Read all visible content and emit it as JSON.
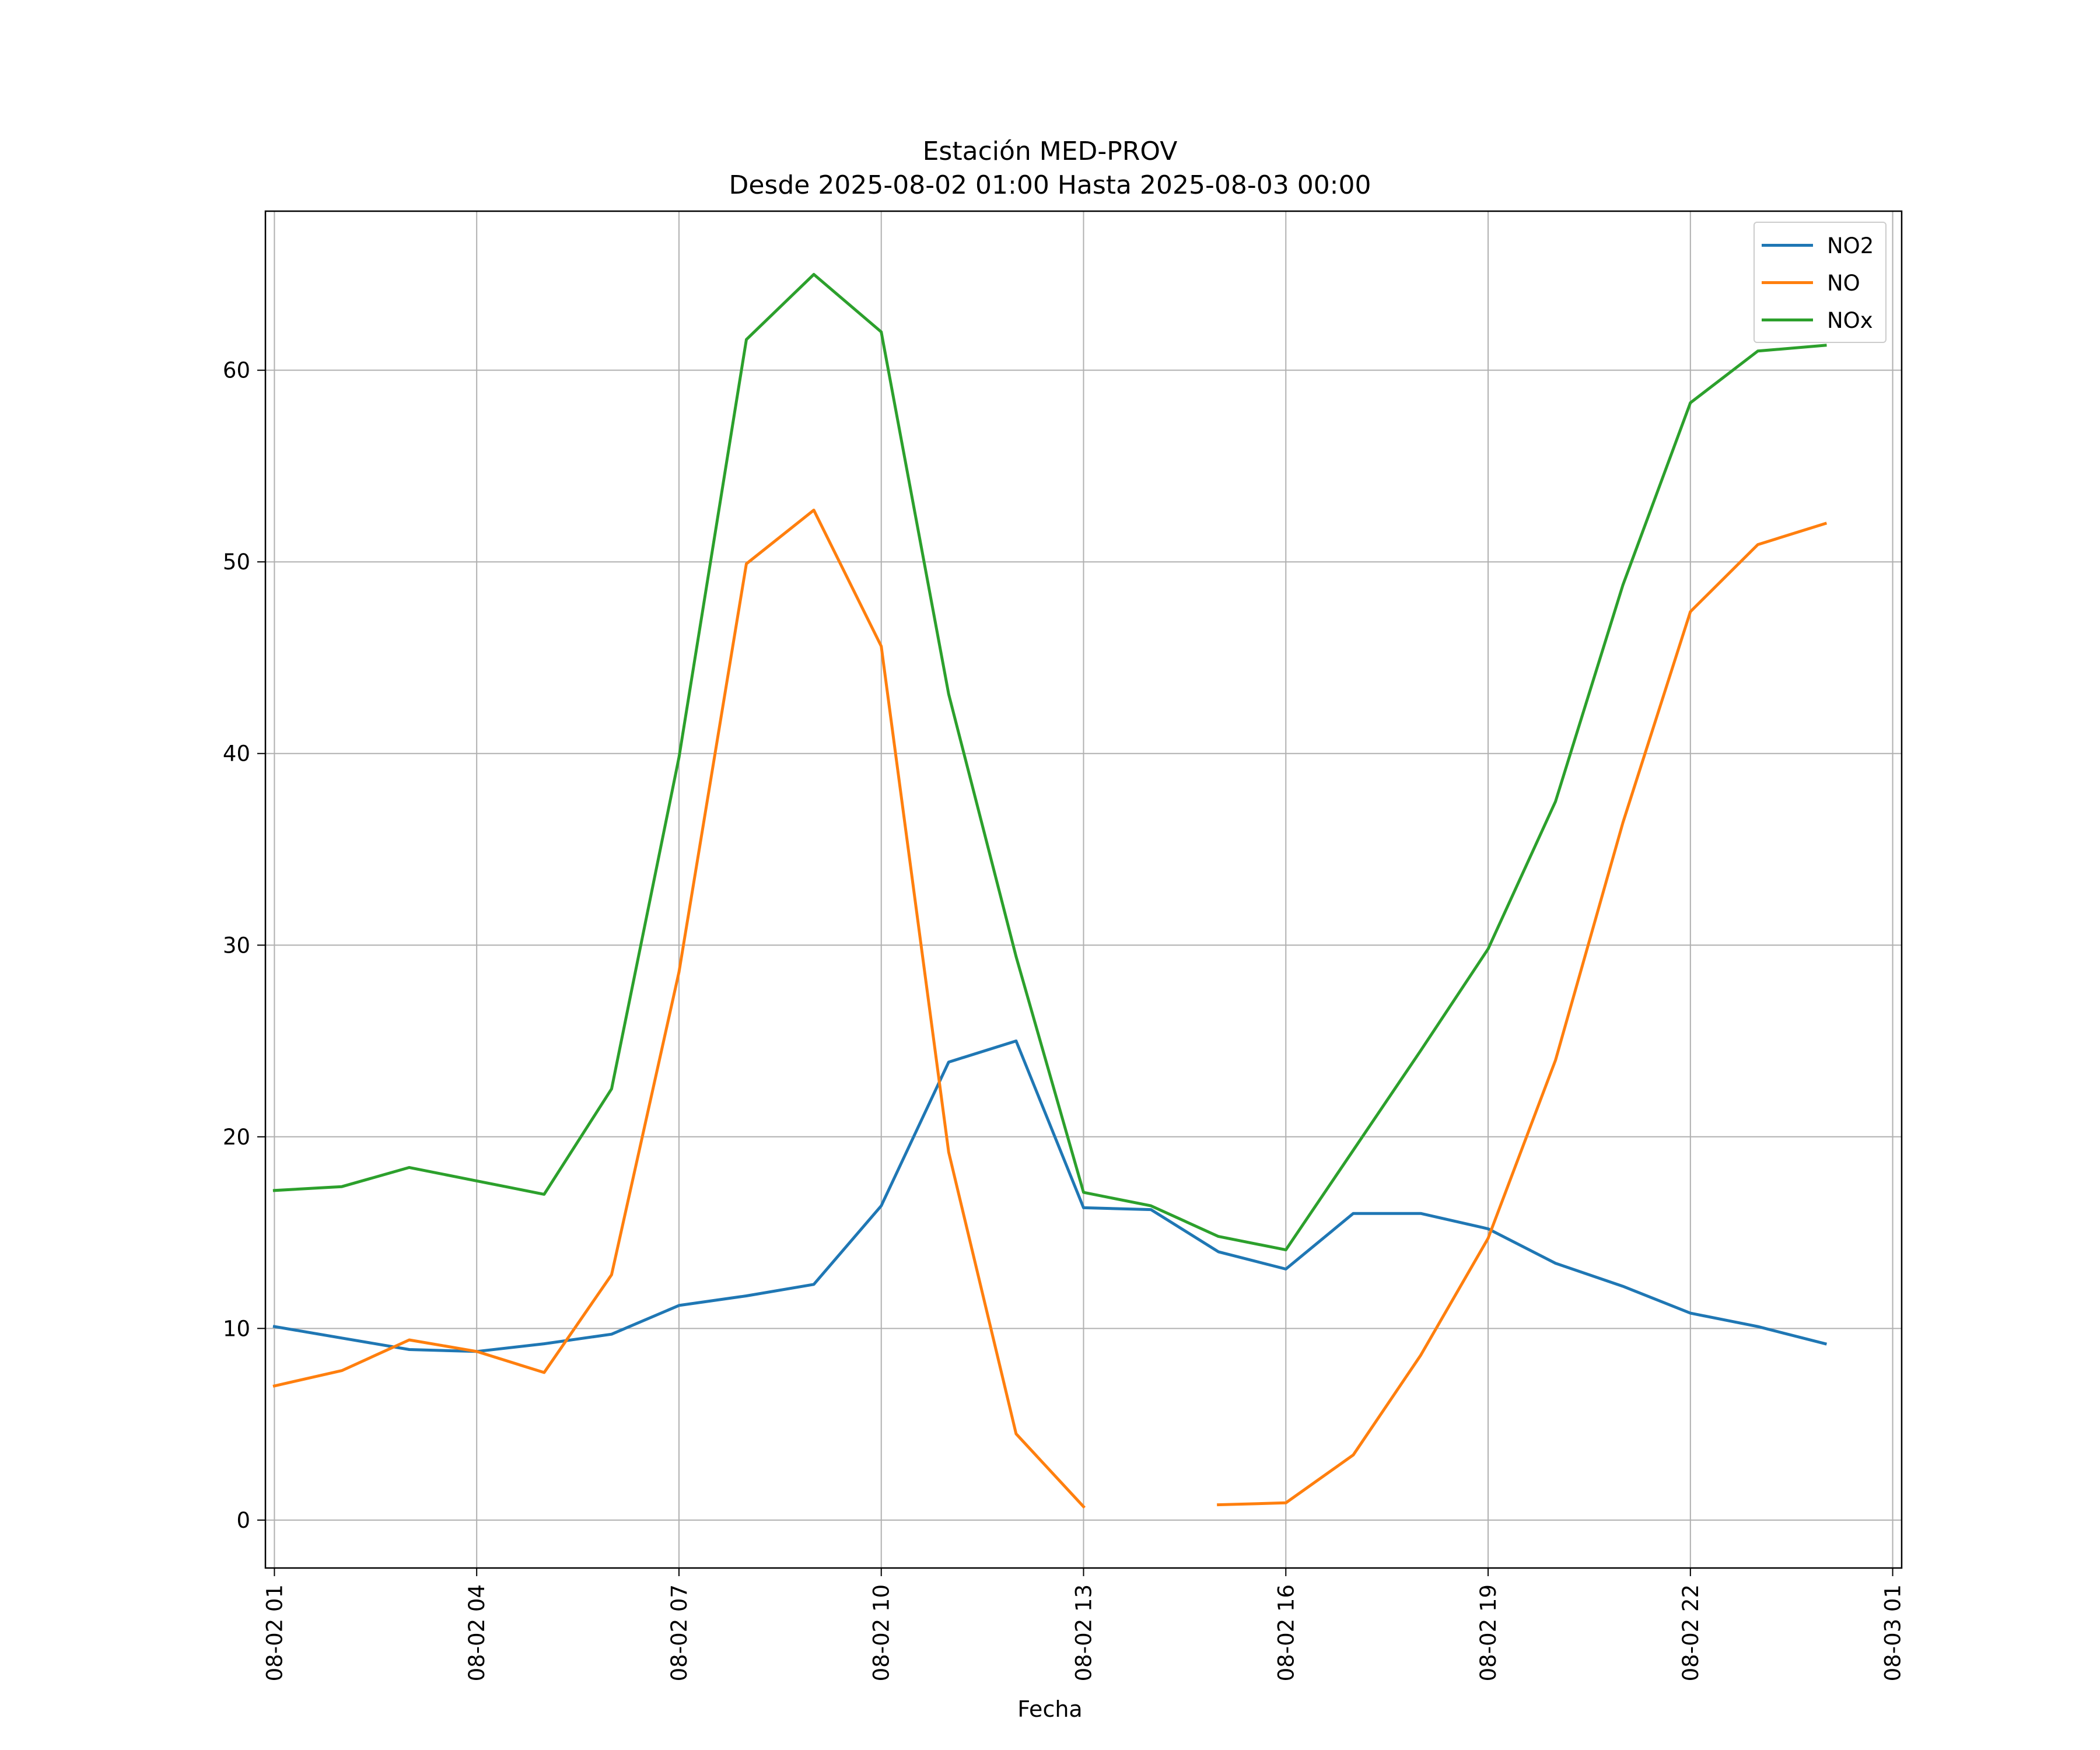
{
  "chart_data": {
    "type": "line",
    "title": "Estación MED-PROV",
    "subtitle": "Desde 2025-08-02 01:00 Hasta 2025-08-03 00:00",
    "xlabel": "Fecha",
    "ylabel": "",
    "x": [
      "2025-08-02 01:00",
      "2025-08-02 02:00",
      "2025-08-02 03:00",
      "2025-08-02 04:00",
      "2025-08-02 05:00",
      "2025-08-02 06:00",
      "2025-08-02 07:00",
      "2025-08-02 08:00",
      "2025-08-02 09:00",
      "2025-08-02 10:00",
      "2025-08-02 11:00",
      "2025-08-02 12:00",
      "2025-08-02 13:00",
      "2025-08-02 14:00",
      "2025-08-02 15:00",
      "2025-08-02 16:00",
      "2025-08-02 17:00",
      "2025-08-02 18:00",
      "2025-08-02 19:00",
      "2025-08-02 20:00",
      "2025-08-02 21:00",
      "2025-08-02 22:00",
      "2025-08-02 23:00",
      "2025-08-03 00:00"
    ],
    "series": [
      {
        "name": "NO2",
        "color": "#1f77b4",
        "values": [
          10.1,
          9.5,
          8.9,
          8.8,
          9.2,
          9.7,
          11.2,
          11.7,
          12.3,
          16.4,
          23.9,
          25.0,
          16.3,
          16.2,
          14.0,
          13.1,
          16.0,
          16.0,
          15.2,
          13.4,
          12.2,
          10.8,
          10.1,
          9.2
        ]
      },
      {
        "name": "NO",
        "color": "#ff7f0e",
        "values": [
          7.0,
          7.8,
          9.4,
          8.8,
          7.7,
          12.8,
          28.6,
          49.9,
          52.7,
          45.6,
          19.2,
          4.5,
          0.7,
          null,
          0.8,
          0.9,
          3.4,
          8.6,
          14.7,
          24.0,
          36.4,
          47.4,
          50.9,
          52.0
        ]
      },
      {
        "name": "NOx",
        "color": "#2ca02c",
        "values": [
          17.2,
          17.4,
          18.4,
          17.7,
          17.0,
          22.5,
          39.8,
          61.6,
          65.0,
          62.0,
          43.1,
          29.4,
          17.1,
          16.4,
          14.8,
          14.1,
          19.3,
          24.5,
          29.8,
          37.5,
          48.8,
          58.3,
          61.0,
          61.3
        ]
      }
    ],
    "xticks": [
      "08-02 01",
      "08-02 04",
      "08-02 07",
      "08-02 10",
      "08-02 13",
      "08-02 16",
      "08-02 19",
      "08-02 22",
      "08-03 01"
    ],
    "yticks": [
      "0",
      "10",
      "20",
      "30",
      "40",
      "50",
      "60"
    ],
    "ylim": [
      -2.5,
      68.3
    ],
    "xlim": [
      "2025-08-02 00:52",
      "2025-08-03 01:08"
    ],
    "grid": true,
    "legend_position": "top-right"
  }
}
